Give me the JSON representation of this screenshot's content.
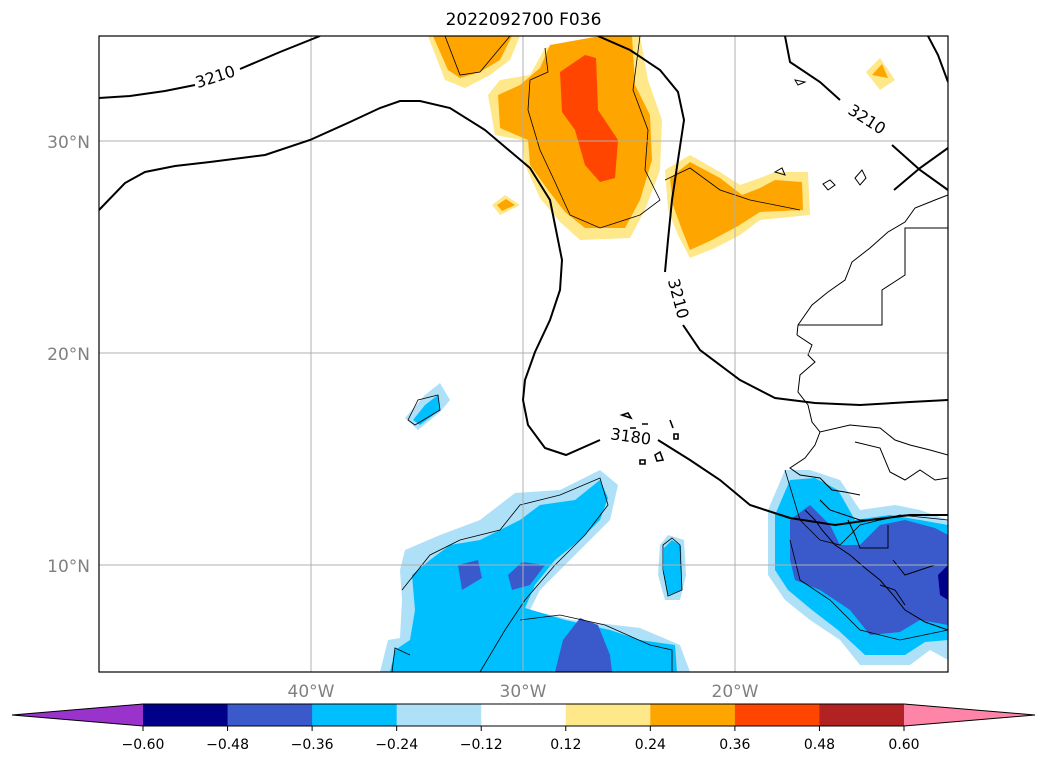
{
  "title": "2022092700 F036",
  "map": {
    "lat_labels": [
      "30°N",
      "20°N",
      "10°N"
    ],
    "lon_labels": [
      "40°W",
      "30°W",
      "20°W"
    ],
    "contour_labels": [
      "3210",
      "3210",
      "3210",
      "3180"
    ],
    "grid": true
  },
  "colorbar": {
    "tick_labels": [
      "−0.60",
      "−0.48",
      "−0.36",
      "−0.24",
      "−0.12",
      "0.12",
      "0.24",
      "0.36",
      "0.48",
      "0.60"
    ],
    "colors": [
      "#9933cc",
      "#000088",
      "#3a5acc",
      "#00bfff",
      "#aee0f7",
      "#ffffff",
      "#ffe88a",
      "#ffa500",
      "#ff4500",
      "#b22222",
      "#ff85a8"
    ],
    "extend": "both"
  }
}
